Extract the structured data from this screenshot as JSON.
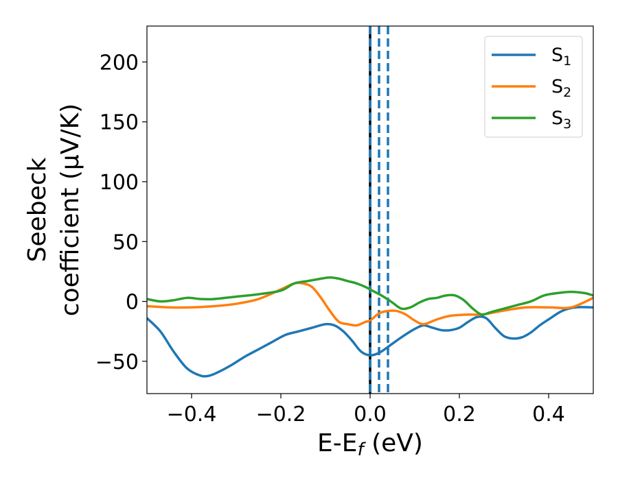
{
  "chart_data": {
    "type": "line",
    "xlabel": "E-E",
    "xlabel_sub": "f",
    "xlabel_unit": " (eV)",
    "ylabel_line1": "Seebeck",
    "ylabel_line2": "coefficient  (μV/K)",
    "xlim": [
      -0.5,
      0.5
    ],
    "ylim": [
      -77,
      230
    ],
    "xticks": [
      -0.4,
      -0.2,
      0.0,
      0.2,
      0.4
    ],
    "xtick_labels": [
      "−0.4",
      "−0.2",
      "0.0",
      "0.2",
      "0.4"
    ],
    "yticks": [
      -50,
      0,
      50,
      100,
      150,
      200
    ],
    "ytick_labels": [
      "−50",
      "0",
      "50",
      "100",
      "150",
      "200"
    ],
    "legend_position": "top-right",
    "vlines": [
      {
        "x": 0.0,
        "color": "#000000",
        "style": "solid"
      },
      {
        "x": 0.0,
        "color": "#1f77b4",
        "style": "dashed"
      },
      {
        "x": 0.02,
        "color": "#1f77b4",
        "style": "dashed"
      },
      {
        "x": 0.04,
        "color": "#1f77b4",
        "style": "dashed"
      }
    ],
    "series": [
      {
        "name": "S",
        "sub": "1",
        "color": "#1f77b4",
        "x": [
          -0.5,
          -0.47,
          -0.44,
          -0.41,
          -0.38,
          -0.36,
          -0.34,
          -0.31,
          -0.28,
          -0.25,
          -0.22,
          -0.19,
          -0.16,
          -0.13,
          -0.1,
          -0.08,
          -0.06,
          -0.04,
          -0.02,
          0.0,
          0.02,
          0.04,
          0.07,
          0.1,
          0.12,
          0.14,
          0.16,
          0.18,
          0.2,
          0.22,
          0.24,
          0.26,
          0.28,
          0.3,
          0.32,
          0.34,
          0.36,
          0.38,
          0.4,
          0.43,
          0.46,
          0.5
        ],
        "y": [
          -14,
          -25,
          -42,
          -56,
          -62,
          -62,
          -59,
          -53,
          -46,
          -40,
          -34,
          -28,
          -25,
          -22,
          -19,
          -20,
          -25,
          -33,
          -42,
          -45,
          -43,
          -38,
          -30,
          -23,
          -20,
          -22,
          -24,
          -24,
          -22,
          -17,
          -13,
          -14,
          -22,
          -29,
          -31,
          -30,
          -26,
          -20,
          -15,
          -8,
          -5,
          -5
        ]
      },
      {
        "name": "S",
        "sub": "2",
        "color": "#ff7f0e",
        "x": [
          -0.5,
          -0.45,
          -0.4,
          -0.35,
          -0.3,
          -0.25,
          -0.2,
          -0.17,
          -0.15,
          -0.13,
          -0.11,
          -0.09,
          -0.07,
          -0.05,
          -0.03,
          -0.01,
          0.0,
          0.02,
          0.04,
          0.06,
          0.08,
          0.1,
          0.12,
          0.15,
          0.18,
          0.22,
          0.25,
          0.28,
          0.31,
          0.35,
          0.4,
          0.45,
          0.5
        ],
        "y": [
          -4,
          -5,
          -5,
          -4,
          -2,
          2,
          10,
          15,
          15,
          12,
          3,
          -8,
          -17,
          -19,
          -20,
          -17,
          -16,
          -10,
          -8,
          -8,
          -11,
          -16,
          -19,
          -15,
          -12,
          -11,
          -11,
          -9,
          -7,
          -5,
          -5,
          -5,
          3
        ]
      },
      {
        "name": "S",
        "sub": "3",
        "color": "#2ca02c",
        "x": [
          -0.5,
          -0.47,
          -0.44,
          -0.41,
          -0.38,
          -0.35,
          -0.3,
          -0.25,
          -0.2,
          -0.17,
          -0.14,
          -0.11,
          -0.09,
          -0.07,
          -0.05,
          -0.03,
          -0.01,
          0.01,
          0.03,
          0.05,
          0.07,
          0.09,
          0.11,
          0.13,
          0.15,
          0.17,
          0.19,
          0.21,
          0.23,
          0.25,
          0.27,
          0.3,
          0.33,
          0.36,
          0.39,
          0.42,
          0.45,
          0.48,
          0.5
        ],
        "y": [
          2,
          0,
          1,
          3,
          2,
          2,
          4,
          6,
          9,
          15,
          17,
          19,
          20,
          19,
          17,
          15,
          12,
          8,
          4,
          -1,
          -6,
          -5,
          -1,
          2,
          3,
          5,
          5,
          1,
          -6,
          -11,
          -9,
          -6,
          -3,
          0,
          5,
          7,
          8,
          7,
          5
        ]
      }
    ]
  }
}
